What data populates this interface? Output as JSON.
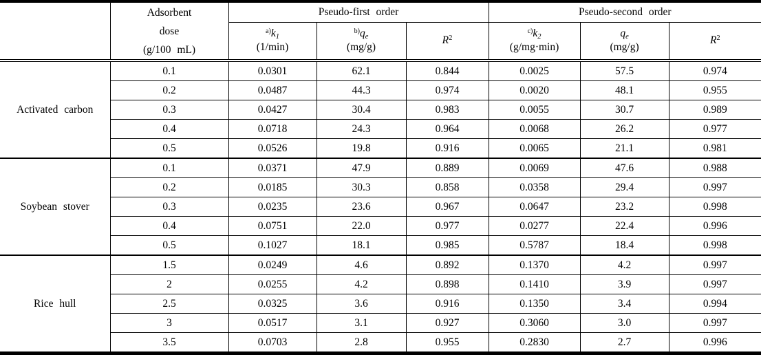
{
  "page": {
    "background_color": "#ffffff",
    "text_color": "#000000",
    "rule_color": "#000000"
  },
  "table": {
    "header": {
      "corner": "",
      "dose": {
        "line1": "Adsorbent",
        "line2": "dose",
        "line3": "(g/100 mL)"
      },
      "groups": [
        {
          "label": "Pseudo-first order",
          "cols": [
            {
              "prefix": "a)",
              "symbol": "k",
              "subscript": "1",
              "superscript": "",
              "unit": "(1/min)"
            },
            {
              "prefix": "b)",
              "symbol": "q",
              "subscript": "e",
              "superscript": "",
              "unit": "(mg/g)"
            },
            {
              "prefix": "",
              "symbol": "R",
              "subscript": "",
              "superscript": "2",
              "unit": ""
            }
          ]
        },
        {
          "label": "Pseudo-second order",
          "cols": [
            {
              "prefix": "c)",
              "symbol": "k",
              "subscript": "2",
              "superscript": "",
              "unit": "(g/mg·min)"
            },
            {
              "prefix": "",
              "symbol": "q",
              "subscript": "e",
              "superscript": "",
              "unit": "(mg/g)"
            },
            {
              "prefix": "",
              "symbol": "R",
              "subscript": "",
              "superscript": "2",
              "unit": ""
            }
          ]
        }
      ]
    },
    "sections": [
      {
        "adsorbent": "Activated carbon",
        "rows": [
          [
            "0.1",
            "0.0301",
            "62.1",
            "0.844",
            "0.0025",
            "57.5",
            "0.974"
          ],
          [
            "0.2",
            "0.0487",
            "44.3",
            "0.974",
            "0.0020",
            "48.1",
            "0.955"
          ],
          [
            "0.3",
            "0.0427",
            "30.4",
            "0.983",
            "0.0055",
            "30.7",
            "0.989"
          ],
          [
            "0.4",
            "0.0718",
            "24.3",
            "0.964",
            "0.0068",
            "26.2",
            "0.977"
          ],
          [
            "0.5",
            "0.0526",
            "19.8",
            "0.916",
            "0.0065",
            "21.1",
            "0.981"
          ]
        ]
      },
      {
        "adsorbent": "Soybean stover",
        "rows": [
          [
            "0.1",
            "0.0371",
            "47.9",
            "0.889",
            "0.0069",
            "47.6",
            "0.988"
          ],
          [
            "0.2",
            "0.0185",
            "30.3",
            "0.858",
            "0.0358",
            "29.4",
            "0.997"
          ],
          [
            "0.3",
            "0.0235",
            "23.6",
            "0.967",
            "0.0647",
            "23.2",
            "0.998"
          ],
          [
            "0.4",
            "0.0751",
            "22.0",
            "0.977",
            "0.0277",
            "22.4",
            "0.996"
          ],
          [
            "0.5",
            "0.1027",
            "18.1",
            "0.985",
            "0.5787",
            "18.4",
            "0.998"
          ]
        ]
      },
      {
        "adsorbent": "Rice hull",
        "rows": [
          [
            "1.5",
            "0.0249",
            "4.6",
            "0.892",
            "0.1370",
            "4.2",
            "0.997"
          ],
          [
            "2",
            "0.0255",
            "4.2",
            "0.898",
            "0.1410",
            "3.9",
            "0.997"
          ],
          [
            "2.5",
            "0.0325",
            "3.6",
            "0.916",
            "0.1350",
            "3.4",
            "0.994"
          ],
          [
            "3",
            "0.0517",
            "3.1",
            "0.927",
            "0.3060",
            "3.0",
            "0.997"
          ],
          [
            "3.5",
            "0.0703",
            "2.8",
            "0.955",
            "0.2830",
            "2.7",
            "0.996"
          ]
        ]
      }
    ]
  }
}
